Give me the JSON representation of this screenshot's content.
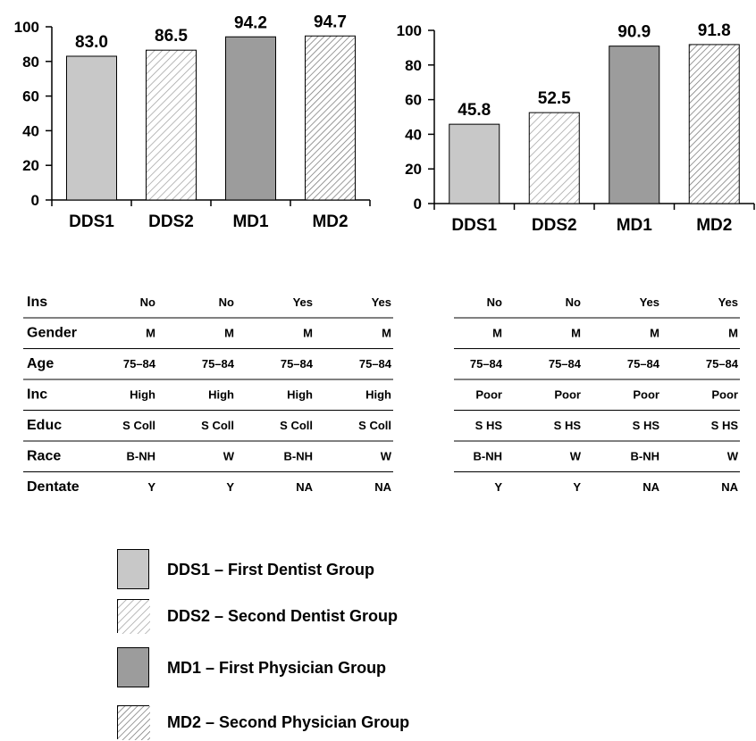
{
  "chart_data": [
    {
      "type": "bar",
      "categories": [
        "DDS1",
        "DDS2",
        "MD1",
        "MD2"
      ],
      "values": [
        83.0,
        86.5,
        94.2,
        94.7
      ],
      "value_labels": [
        "83.0",
        "86.5",
        "94.2",
        "94.7"
      ],
      "yticks": [
        "0",
        "20",
        "40",
        "60",
        "80",
        "100"
      ],
      "ylim": [
        0,
        100
      ],
      "title": "",
      "xlabel": "",
      "ylabel": ""
    },
    {
      "type": "bar",
      "categories": [
        "DDS1",
        "DDS2",
        "MD1",
        "MD2"
      ],
      "values": [
        45.8,
        52.5,
        90.9,
        91.8
      ],
      "value_labels": [
        "45.8",
        "52.5",
        "90.9",
        "91.8"
      ],
      "yticks": [
        "0",
        "20",
        "40",
        "60",
        "80",
        "100"
      ],
      "ylim": [
        0,
        100
      ],
      "title": "",
      "xlabel": "",
      "ylabel": ""
    }
  ],
  "bar_styles": [
    {
      "fill": "#c8c8c8",
      "pattern": "none"
    },
    {
      "fill": "#ffffff",
      "pattern": "hatch-fine"
    },
    {
      "fill": "#9c9c9c",
      "pattern": "none"
    },
    {
      "fill": "#ffffff",
      "pattern": "hatch-dense"
    }
  ],
  "tables": {
    "row_labels": [
      "Ins",
      "Gender",
      "Age",
      "Inc",
      "Educ",
      "Race",
      "Dentate"
    ],
    "left": [
      [
        "No",
        "No",
        "Yes",
        "Yes"
      ],
      [
        "M",
        "M",
        "M",
        "M"
      ],
      [
        "75–84",
        "75–84",
        "75–84",
        "75–84"
      ],
      [
        "High",
        "High",
        "High",
        "High"
      ],
      [
        "S Coll",
        "S Coll",
        "S Coll",
        "S Coll"
      ],
      [
        "B-NH",
        "W",
        "B-NH",
        "W"
      ],
      [
        "Y",
        "Y",
        "NA",
        "NA"
      ]
    ],
    "right": [
      [
        "No",
        "No",
        "Yes",
        "Yes"
      ],
      [
        "M",
        "M",
        "M",
        "M"
      ],
      [
        "75–84",
        "75–84",
        "75–84",
        "75–84"
      ],
      [
        "Poor",
        "Poor",
        "Poor",
        "Poor"
      ],
      [
        "S HS",
        "S HS",
        "S HS",
        "S HS"
      ],
      [
        "B-NH",
        "W",
        "B-NH",
        "W"
      ],
      [
        "Y",
        "Y",
        "NA",
        "NA"
      ]
    ]
  },
  "legend": {
    "items": [
      {
        "label": "DDS1 – First Dentist Group"
      },
      {
        "label": "DDS2 – Second Dentist Group"
      },
      {
        "label": "MD1 – First Physician Group"
      },
      {
        "label": "MD2 – Second Physician Group"
      }
    ]
  }
}
